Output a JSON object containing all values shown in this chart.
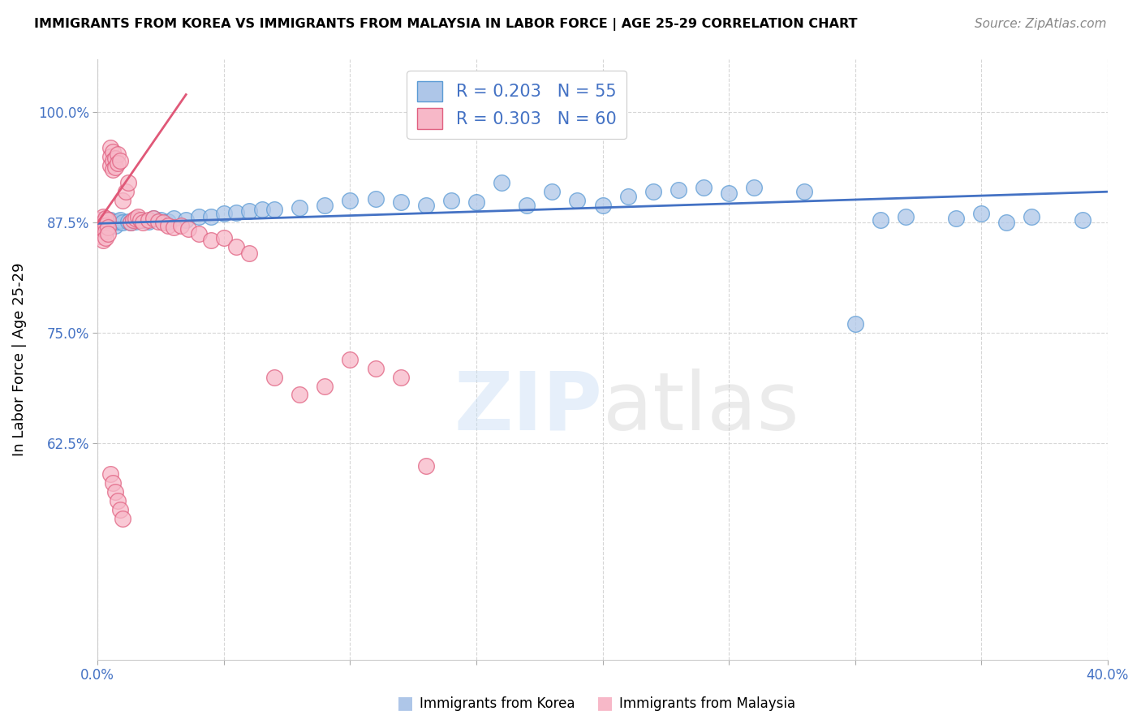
{
  "title": "IMMIGRANTS FROM KOREA VS IMMIGRANTS FROM MALAYSIA IN LABOR FORCE | AGE 25-29 CORRELATION CHART",
  "source": "Source: ZipAtlas.com",
  "ylabel": "In Labor Force | Age 25-29",
  "xlim": [
    0.0,
    0.4
  ],
  "ylim": [
    0.38,
    1.06
  ],
  "korea_R": 0.203,
  "korea_N": 55,
  "malaysia_R": 0.303,
  "malaysia_N": 60,
  "blue_color": "#aec6e8",
  "pink_color": "#f7b8c8",
  "blue_edge_color": "#5b9bd5",
  "pink_edge_color": "#e06080",
  "blue_line_color": "#4472C4",
  "pink_line_color": "#e05878",
  "korea_x": [
    0.001,
    0.002,
    0.003,
    0.004,
    0.005,
    0.006,
    0.007,
    0.008,
    0.009,
    0.01,
    0.012,
    0.013,
    0.015,
    0.017,
    0.02,
    0.022,
    0.025,
    0.028,
    0.03,
    0.035,
    0.04,
    0.045,
    0.05,
    0.055,
    0.06,
    0.065,
    0.07,
    0.08,
    0.09,
    0.1,
    0.11,
    0.12,
    0.13,
    0.14,
    0.15,
    0.16,
    0.17,
    0.18,
    0.19,
    0.2,
    0.21,
    0.22,
    0.23,
    0.24,
    0.25,
    0.26,
    0.28,
    0.3,
    0.31,
    0.32,
    0.34,
    0.35,
    0.36,
    0.37,
    0.39
  ],
  "korea_y": [
    0.878,
    0.875,
    0.872,
    0.875,
    0.878,
    0.875,
    0.872,
    0.876,
    0.878,
    0.875,
    0.876,
    0.875,
    0.876,
    0.878,
    0.876,
    0.88,
    0.878,
    0.876,
    0.88,
    0.878,
    0.882,
    0.882,
    0.885,
    0.886,
    0.888,
    0.89,
    0.89,
    0.892,
    0.895,
    0.9,
    0.902,
    0.898,
    0.895,
    0.9,
    0.898,
    0.92,
    0.895,
    0.91,
    0.9,
    0.895,
    0.905,
    0.91,
    0.912,
    0.915,
    0.908,
    0.915,
    0.91,
    0.76,
    0.878,
    0.882,
    0.88,
    0.885,
    0.875,
    0.882,
    0.878
  ],
  "malaysia_x": [
    0.001,
    0.001,
    0.001,
    0.002,
    0.002,
    0.002,
    0.002,
    0.003,
    0.003,
    0.003,
    0.003,
    0.004,
    0.004,
    0.004,
    0.005,
    0.005,
    0.005,
    0.006,
    0.006,
    0.006,
    0.007,
    0.007,
    0.008,
    0.008,
    0.009,
    0.01,
    0.011,
    0.012,
    0.013,
    0.014,
    0.015,
    0.016,
    0.017,
    0.018,
    0.02,
    0.022,
    0.024,
    0.026,
    0.028,
    0.03,
    0.033,
    0.036,
    0.04,
    0.045,
    0.05,
    0.055,
    0.06,
    0.07,
    0.08,
    0.09,
    0.1,
    0.11,
    0.12,
    0.13,
    0.005,
    0.006,
    0.007,
    0.008,
    0.009,
    0.01
  ],
  "malaysia_y": [
    0.878,
    0.87,
    0.86,
    0.882,
    0.875,
    0.868,
    0.855,
    0.88,
    0.872,
    0.865,
    0.858,
    0.878,
    0.87,
    0.862,
    0.96,
    0.95,
    0.94,
    0.955,
    0.945,
    0.935,
    0.948,
    0.938,
    0.952,
    0.942,
    0.945,
    0.9,
    0.91,
    0.92,
    0.875,
    0.878,
    0.88,
    0.882,
    0.878,
    0.875,
    0.878,
    0.88,
    0.876,
    0.875,
    0.872,
    0.87,
    0.872,
    0.868,
    0.862,
    0.855,
    0.858,
    0.848,
    0.84,
    0.7,
    0.68,
    0.69,
    0.72,
    0.71,
    0.7,
    0.6,
    0.59,
    0.58,
    0.57,
    0.56,
    0.55,
    0.54
  ]
}
